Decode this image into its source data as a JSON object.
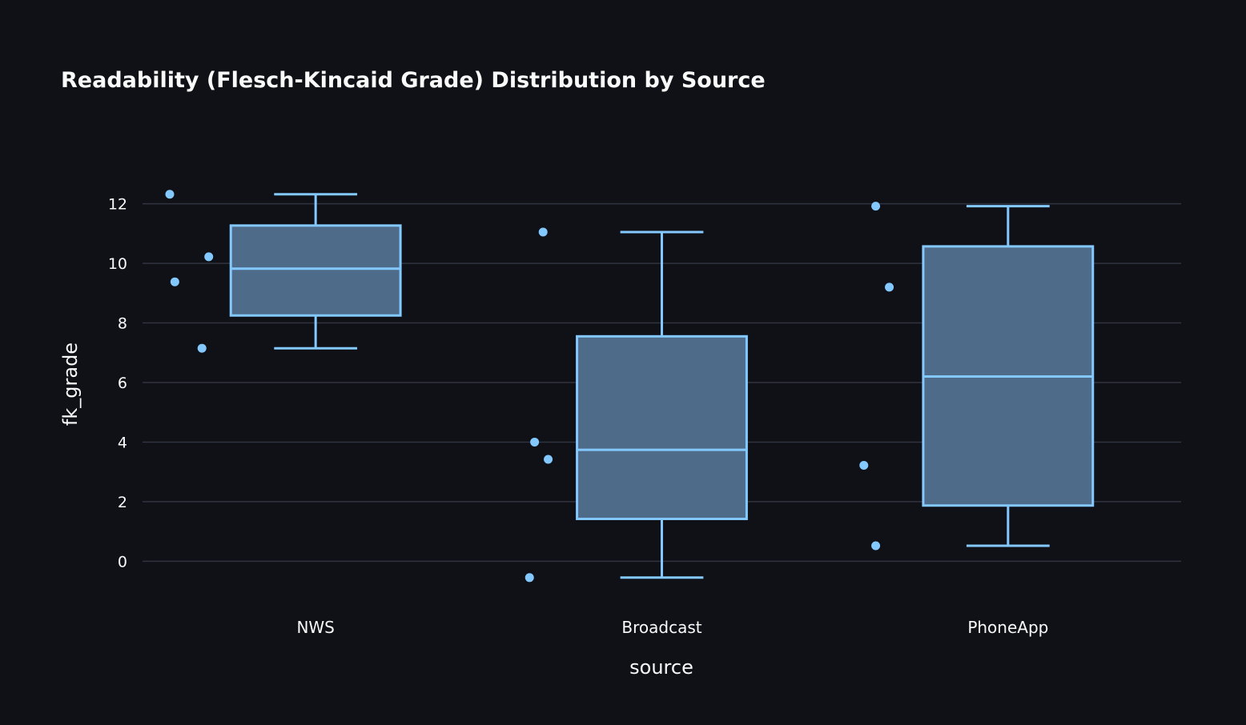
{
  "chart_data": {
    "type": "box",
    "title": "Readability (Flesch-Kincaid Grade) Distribution by Source",
    "xlabel": "source",
    "ylabel": "fk_grade",
    "categories": [
      "NWS",
      "Broadcast",
      "PhoneApp"
    ],
    "ylim": [
      -1.2,
      13.2
    ],
    "yticks": [
      0,
      2,
      4,
      6,
      8,
      10,
      12
    ],
    "grid": true,
    "colors": {
      "background": "#0f1117",
      "grid": "#31333f",
      "box_stroke": "#83c9ff",
      "box_fill": "#4e6b8a",
      "text": "#fafafa"
    },
    "boxes": [
      {
        "category": "NWS",
        "min": 7.15,
        "q1": 8.25,
        "median": 9.82,
        "q3": 11.27,
        "max": 12.32,
        "points": [
          12.32,
          9.38,
          10.22,
          7.15
        ]
      },
      {
        "category": "Broadcast",
        "min": -0.55,
        "q1": 1.42,
        "median": 3.74,
        "q3": 7.55,
        "max": 11.05,
        "points": [
          11.05,
          4.0,
          3.42,
          -0.55
        ]
      },
      {
        "category": "PhoneApp",
        "min": 0.52,
        "q1": 1.87,
        "median": 6.2,
        "q3": 10.57,
        "max": 11.92,
        "points": [
          11.92,
          9.2,
          3.22,
          0.52
        ]
      }
    ]
  }
}
